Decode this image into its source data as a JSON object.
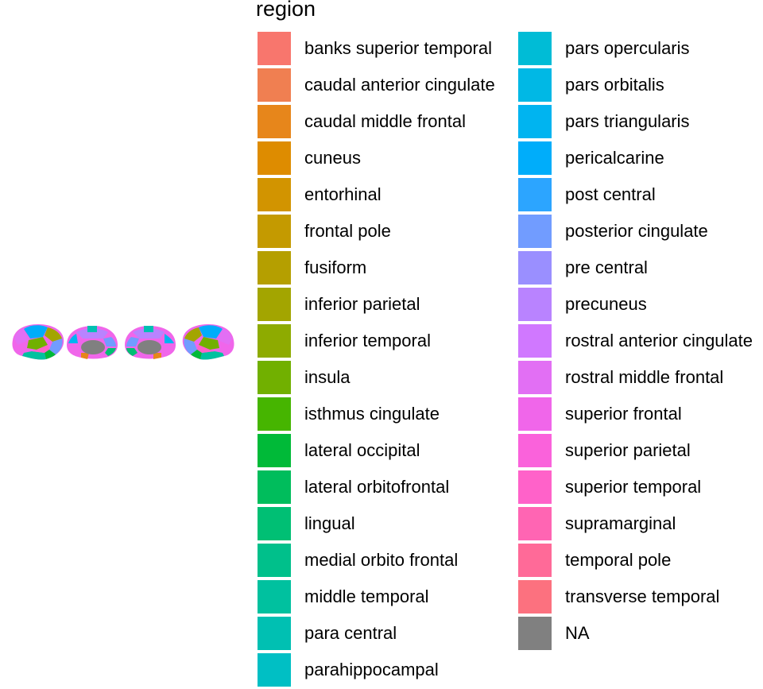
{
  "chart_data": {
    "type": "other",
    "legend": {
      "title": "region",
      "columns": [
        [
          {
            "label": "banks superior temporal",
            "color": "#F8766D"
          },
          {
            "label": "caudal anterior cingulate",
            "color": "#F07F51"
          },
          {
            "label": "caudal middle frontal",
            "color": "#E7861B"
          },
          {
            "label": "cuneus",
            "color": "#DE8C00"
          },
          {
            "label": "entorhinal",
            "color": "#D29400"
          },
          {
            "label": "frontal pole",
            "color": "#C49A00"
          },
          {
            "label": "fusiform",
            "color": "#B59F00"
          },
          {
            "label": "inferior parietal",
            "color": "#A3A500"
          },
          {
            "label": "inferior temporal",
            "color": "#8EAB00"
          },
          {
            "label": "insula",
            "color": "#71B000"
          },
          {
            "label": "isthmus cingulate",
            "color": "#46B500"
          },
          {
            "label": "lateral occipital",
            "color": "#00BA38"
          },
          {
            "label": "lateral orbitofrontal",
            "color": "#00BD5C"
          },
          {
            "label": "lingual",
            "color": "#00BF74"
          },
          {
            "label": "medial orbito frontal",
            "color": "#00C08B"
          },
          {
            "label": "middle temporal",
            "color": "#00C19F"
          },
          {
            "label": "para central",
            "color": "#00C0B2"
          },
          {
            "label": "parahippocampal",
            "color": "#00BFC4"
          }
        ],
        [
          {
            "label": "pars opercularis",
            "color": "#00BCD6"
          },
          {
            "label": "pars orbitalis",
            "color": "#00B8E5"
          },
          {
            "label": "pars triangularis",
            "color": "#00B4F0"
          },
          {
            "label": "pericalcarine",
            "color": "#00ADFA"
          },
          {
            "label": "post central",
            "color": "#2CA5FF"
          },
          {
            "label": "posterior cingulate",
            "color": "#719CFF"
          },
          {
            "label": "pre central",
            "color": "#9A8FFF"
          },
          {
            "label": "precuneus",
            "color": "#B983FF"
          },
          {
            "label": "rostral anterior cingulate",
            "color": "#D078FF"
          },
          {
            "label": "rostral middle frontal",
            "color": "#E26FF4"
          },
          {
            "label": "superior frontal",
            "color": "#F066EA"
          },
          {
            "label": "superior parietal",
            "color": "#FA62DB"
          },
          {
            "label": "superior temporal",
            "color": "#FF62C9"
          },
          {
            "label": "supramarginal",
            "color": "#FF65B3"
          },
          {
            "label": "temporal pole",
            "color": "#FF6A98"
          },
          {
            "label": "transverse temporal",
            "color": "#FC717F"
          },
          {
            "label": "NA",
            "color": "#808080"
          }
        ]
      ]
    },
    "brain_views": [
      {
        "view": "left lateral",
        "colors": [
          "#F066EA",
          "#00ADFA",
          "#A3A500",
          "#E26FF4",
          "#71B000",
          "#00C19F",
          "#719CFF",
          "#FF62C9",
          "#00BA38"
        ]
      },
      {
        "view": "left medial",
        "colors": [
          "#F066EA",
          "#B983FF",
          "#00C0B2",
          "#719CFF",
          "#00BF74",
          "#00B4F0",
          "#E7861B",
          "#808080"
        ]
      },
      {
        "view": "right medial",
        "colors": [
          "#F066EA",
          "#B983FF",
          "#00C0B2",
          "#719CFF",
          "#00BF74",
          "#00B4F0",
          "#E7861B",
          "#808080"
        ]
      },
      {
        "view": "right lateral",
        "colors": [
          "#F066EA",
          "#00ADFA",
          "#A3A500",
          "#E26FF4",
          "#71B000",
          "#00C19F",
          "#719CFF",
          "#FF62C9",
          "#00BA38"
        ]
      }
    ]
  }
}
